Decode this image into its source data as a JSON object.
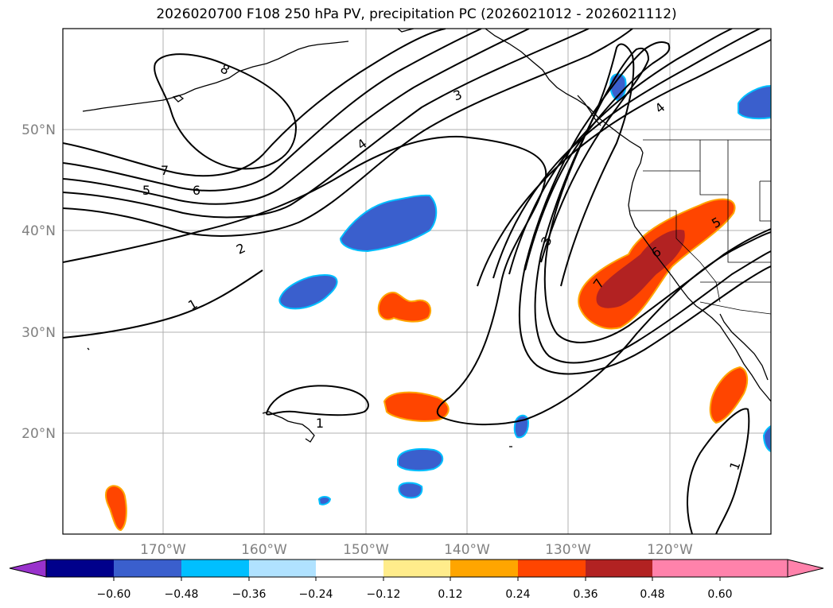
{
  "title": "2026020700 F108 250 hPa PV, precipitation PC (2026021012 - 2026021112)",
  "map": {
    "lat_labels": [
      "50°N",
      "40°N",
      "30°N",
      "20°N"
    ],
    "lon_labels": [
      "170°W",
      "160°W",
      "150°W",
      "140°W",
      "130°W",
      "120°W"
    ],
    "contour_labels": [
      "8",
      "7",
      "6",
      "5",
      "4",
      "3",
      "2",
      "1",
      "1",
      "3",
      "4",
      "5",
      "6",
      "7",
      "1"
    ]
  },
  "colorbar": {
    "colors": [
      "#9932cc",
      "#00008b",
      "#3a5fcd",
      "#00bfff",
      "#b0e2ff",
      "#ffffff",
      "#ffec8b",
      "#ffa500",
      "#ff4500",
      "#b22222",
      "#ff82ab"
    ],
    "tick_labels": [
      "−0.60",
      "−0.48",
      "−0.36",
      "−0.24",
      "−0.12",
      "0.12",
      "0.24",
      "0.36",
      "0.48",
      "0.60"
    ]
  }
}
